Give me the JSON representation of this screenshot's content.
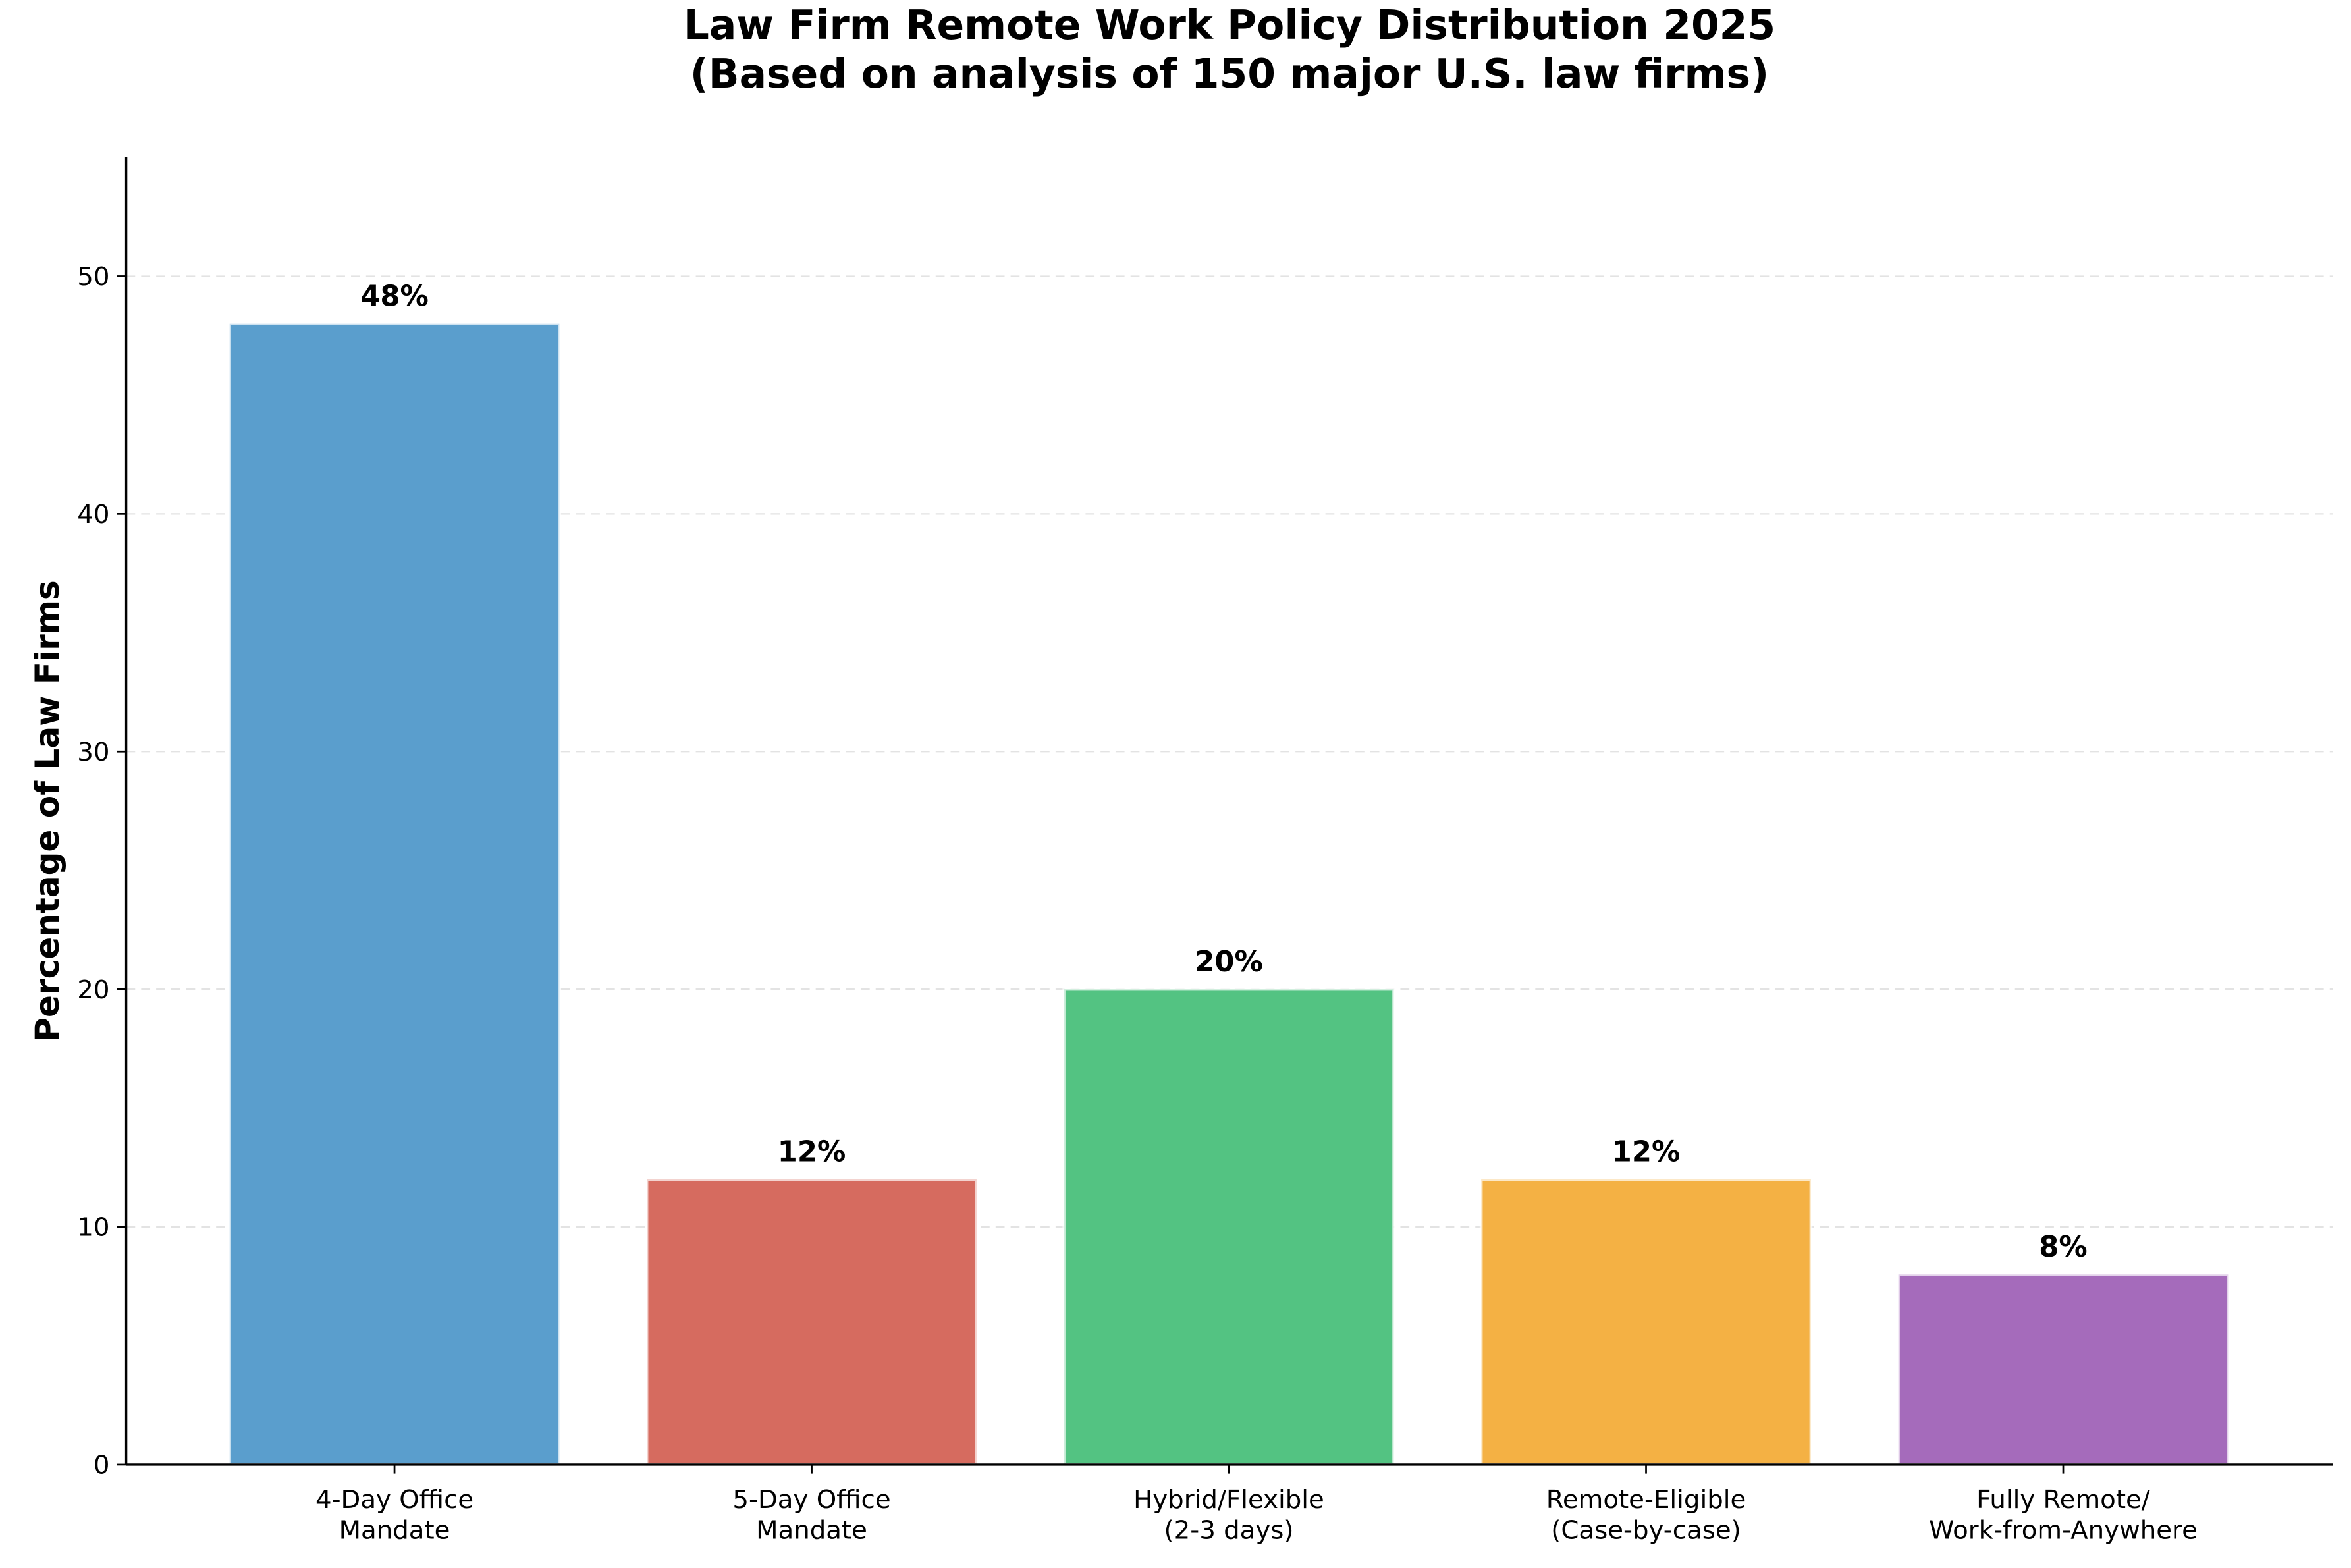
{
  "chart_data": {
    "type": "bar",
    "title": "Law Firm Remote Work Policy Distribution 2025\n(Based on analysis of 150 major U.S. law firms)",
    "y_label": "Percentage of Law Firms",
    "categories": [
      "4-Day Office\nMandate",
      "5-Day Office\nMandate",
      "Hybrid/Flexible\n(2-3 days)",
      "Remote-Eligible\n(Case-by-case)",
      "Fully Remote/\nWork-from-Anywhere"
    ],
    "values": [
      48,
      12,
      20,
      12,
      8
    ],
    "value_labels": [
      "48%",
      "12%",
      "20%",
      "12%",
      "8%"
    ],
    "colors": [
      "#5a9ecd",
      "#d66b5f",
      "#53c382",
      "#f4b144",
      "#a56bbb"
    ],
    "ylim": [
      0,
      55
    ],
    "yticks": [
      0,
      10,
      20,
      30,
      40,
      50
    ],
    "grid": true
  }
}
